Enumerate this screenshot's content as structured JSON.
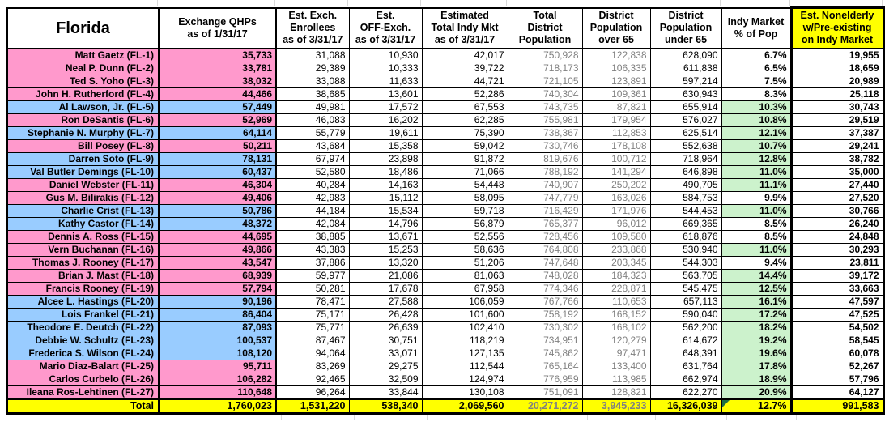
{
  "table": {
    "state_label": "Florida",
    "columns": [
      "Exchange QHPs\nas of 1/31/17",
      "Est. Exch.\nEnrollees\nas of 3/31/17",
      "Est.\nOFF-Exch.\nas of 3/31/17",
      "Estimated\nTotal Indy Mkt\nas of 3/31/17",
      "Total\nDistrict\nPopulation",
      "District\nPopulation\nover 65",
      "District\nPopulation\nunder 65",
      "Indy Market\n% of Pop",
      "Est. Nonelderly\nw/Pre-existing\non Indy Market"
    ],
    "rows": [
      {
        "name": "Matt Gaetz (FL-1)",
        "color": "pink",
        "values": [
          "35,733",
          "31,088",
          "10,930",
          "42,017",
          "750,928",
          "122,838",
          "628,090",
          "6.7%",
          "19,955"
        ]
      },
      {
        "name": "Neal P. Dunn (FL-2)",
        "color": "pink",
        "values": [
          "33,781",
          "29,389",
          "10,333",
          "39,722",
          "718,173",
          "106,335",
          "611,838",
          "6.5%",
          "18,659"
        ]
      },
      {
        "name": "Ted S. Yoho (FL-3)",
        "color": "pink",
        "values": [
          "38,032",
          "33,088",
          "11,633",
          "44,721",
          "721,105",
          "123,891",
          "597,214",
          "7.5%",
          "20,989"
        ]
      },
      {
        "name": "John H. Rutherford (FL-4)",
        "color": "pink",
        "values": [
          "44,466",
          "38,685",
          "13,601",
          "52,286",
          "740,304",
          "109,361",
          "630,943",
          "8.3%",
          "25,118"
        ]
      },
      {
        "name": "Al Lawson, Jr. (FL-5)",
        "color": "blue",
        "values": [
          "57,449",
          "49,981",
          "17,572",
          "67,553",
          "743,735",
          "87,821",
          "655,914",
          "10.3%",
          "30,743"
        ]
      },
      {
        "name": "Ron DeSantis (FL-6)",
        "color": "pink",
        "values": [
          "52,969",
          "46,083",
          "16,202",
          "62,285",
          "755,981",
          "179,954",
          "576,027",
          "10.8%",
          "29,519"
        ]
      },
      {
        "name": "Stephanie N. Murphy (FL-7)",
        "color": "blue",
        "values": [
          "64,114",
          "55,779",
          "19,611",
          "75,390",
          "738,367",
          "112,853",
          "625,514",
          "12.1%",
          "37,387"
        ]
      },
      {
        "name": "Bill Posey (FL-8)",
        "color": "pink",
        "values": [
          "50,211",
          "43,684",
          "15,358",
          "59,042",
          "730,746",
          "178,108",
          "552,638",
          "10.7%",
          "29,241"
        ]
      },
      {
        "name": "Darren Soto (FL-9)",
        "color": "blue",
        "values": [
          "78,131",
          "67,974",
          "23,898",
          "91,872",
          "819,676",
          "100,712",
          "718,964",
          "12.8%",
          "38,782"
        ]
      },
      {
        "name": "Val Butler Demings (FL-10)",
        "color": "blue",
        "values": [
          "60,437",
          "52,580",
          "18,486",
          "71,066",
          "788,192",
          "141,294",
          "646,898",
          "11.0%",
          "35,000"
        ]
      },
      {
        "name": "Daniel Webster (FL-11)",
        "color": "pink",
        "values": [
          "46,304",
          "40,284",
          "14,163",
          "54,448",
          "740,907",
          "250,202",
          "490,705",
          "11.1%",
          "27,440"
        ]
      },
      {
        "name": "Gus M. Bilirakis (FL-12)",
        "color": "pink",
        "values": [
          "49,406",
          "42,983",
          "15,112",
          "58,095",
          "747,779",
          "163,026",
          "584,753",
          "9.9%",
          "27,520"
        ]
      },
      {
        "name": "Charlie Crist (FL-13)",
        "color": "blue",
        "values": [
          "50,786",
          "44,184",
          "15,534",
          "59,718",
          "716,429",
          "171,976",
          "544,453",
          "11.0%",
          "30,766"
        ]
      },
      {
        "name": "Kathy Castor (FL-14)",
        "color": "blue",
        "values": [
          "48,372",
          "42,084",
          "14,796",
          "56,879",
          "765,377",
          "96,012",
          "669,365",
          "8.5%",
          "26,240"
        ]
      },
      {
        "name": "Dennis A. Ross (FL-15)",
        "color": "pink",
        "values": [
          "44,695",
          "38,885",
          "13,671",
          "52,556",
          "728,456",
          "109,580",
          "618,876",
          "8.5%",
          "24,848"
        ]
      },
      {
        "name": "Vern Buchanan (FL-16)",
        "color": "pink",
        "values": [
          "49,866",
          "43,383",
          "15,253",
          "58,636",
          "764,808",
          "233,868",
          "530,940",
          "11.0%",
          "30,293"
        ]
      },
      {
        "name": "Thomas J. Rooney (FL-17)",
        "color": "pink",
        "values": [
          "43,547",
          "37,886",
          "13,320",
          "51,206",
          "747,648",
          "203,345",
          "544,303",
          "9.4%",
          "23,811"
        ]
      },
      {
        "name": "Brian J. Mast (FL-18)",
        "color": "pink",
        "values": [
          "68,939",
          "59,977",
          "21,086",
          "81,063",
          "748,028",
          "184,323",
          "563,705",
          "14.4%",
          "39,172"
        ]
      },
      {
        "name": "Francis Rooney (FL-19)",
        "color": "pink",
        "values": [
          "57,794",
          "50,281",
          "17,678",
          "67,958",
          "774,346",
          "228,871",
          "545,475",
          "12.5%",
          "33,663"
        ]
      },
      {
        "name": "Alcee L. Hastings (FL-20)",
        "color": "blue",
        "values": [
          "90,196",
          "78,471",
          "27,588",
          "106,059",
          "767,766",
          "110,653",
          "657,113",
          "16.1%",
          "47,597"
        ]
      },
      {
        "name": "Lois Frankel (FL-21)",
        "color": "blue",
        "values": [
          "86,404",
          "75,171",
          "26,428",
          "101,600",
          "758,192",
          "168,152",
          "590,040",
          "17.2%",
          "47,525"
        ]
      },
      {
        "name": "Theodore E. Deutch (FL-22)",
        "color": "blue",
        "values": [
          "87,093",
          "75,771",
          "26,639",
          "102,410",
          "730,302",
          "168,102",
          "562,200",
          "18.2%",
          "54,502"
        ]
      },
      {
        "name": "Debbie W. Schultz (FL-23)",
        "color": "blue",
        "values": [
          "100,537",
          "87,467",
          "30,751",
          "118,219",
          "734,951",
          "120,279",
          "614,672",
          "19.2%",
          "58,545"
        ]
      },
      {
        "name": "Frederica S. Wilson (FL-24)",
        "color": "blue",
        "values": [
          "108,120",
          "94,064",
          "33,071",
          "127,135",
          "745,862",
          "97,471",
          "648,391",
          "19.6%",
          "60,078"
        ]
      },
      {
        "name": "Mario Diaz-Balart (FL-25)",
        "color": "pink",
        "values": [
          "95,711",
          "83,269",
          "29,275",
          "112,544",
          "765,164",
          "133,400",
          "631,764",
          "17.8%",
          "52,267"
        ]
      },
      {
        "name": "Carlos Curbelo (FL-26)",
        "color": "pink",
        "values": [
          "106,282",
          "92,465",
          "32,509",
          "124,974",
          "776,959",
          "113,985",
          "662,974",
          "18.9%",
          "57,796"
        ]
      },
      {
        "name": "Ileana Ros-Lehtinen (FL-27)",
        "color": "pink",
        "values": [
          "110,648",
          "96,264",
          "33,844",
          "130,108",
          "751,091",
          "128,821",
          "622,270",
          "20.9%",
          "64,127"
        ]
      }
    ],
    "total": {
      "label": "Total",
      "values": [
        "1,760,023",
        "1,531,220",
        "538,340",
        "2,069,560",
        "20,271,272",
        "3,945,233",
        "16,326,039",
        "12.7%",
        "991,583"
      ]
    },
    "highlight_rule": "Indy Market % of Pop cell is green when value is 10% or higher",
    "colors": {
      "pink_row": "#FF99CC",
      "blue_row": "#99CCFF",
      "green_highlight": "#CCF2CC",
      "yellow_highlight": "#FFFF00",
      "muted_population_text": "#808080",
      "corner_marker_green": "#1E7145"
    }
  }
}
